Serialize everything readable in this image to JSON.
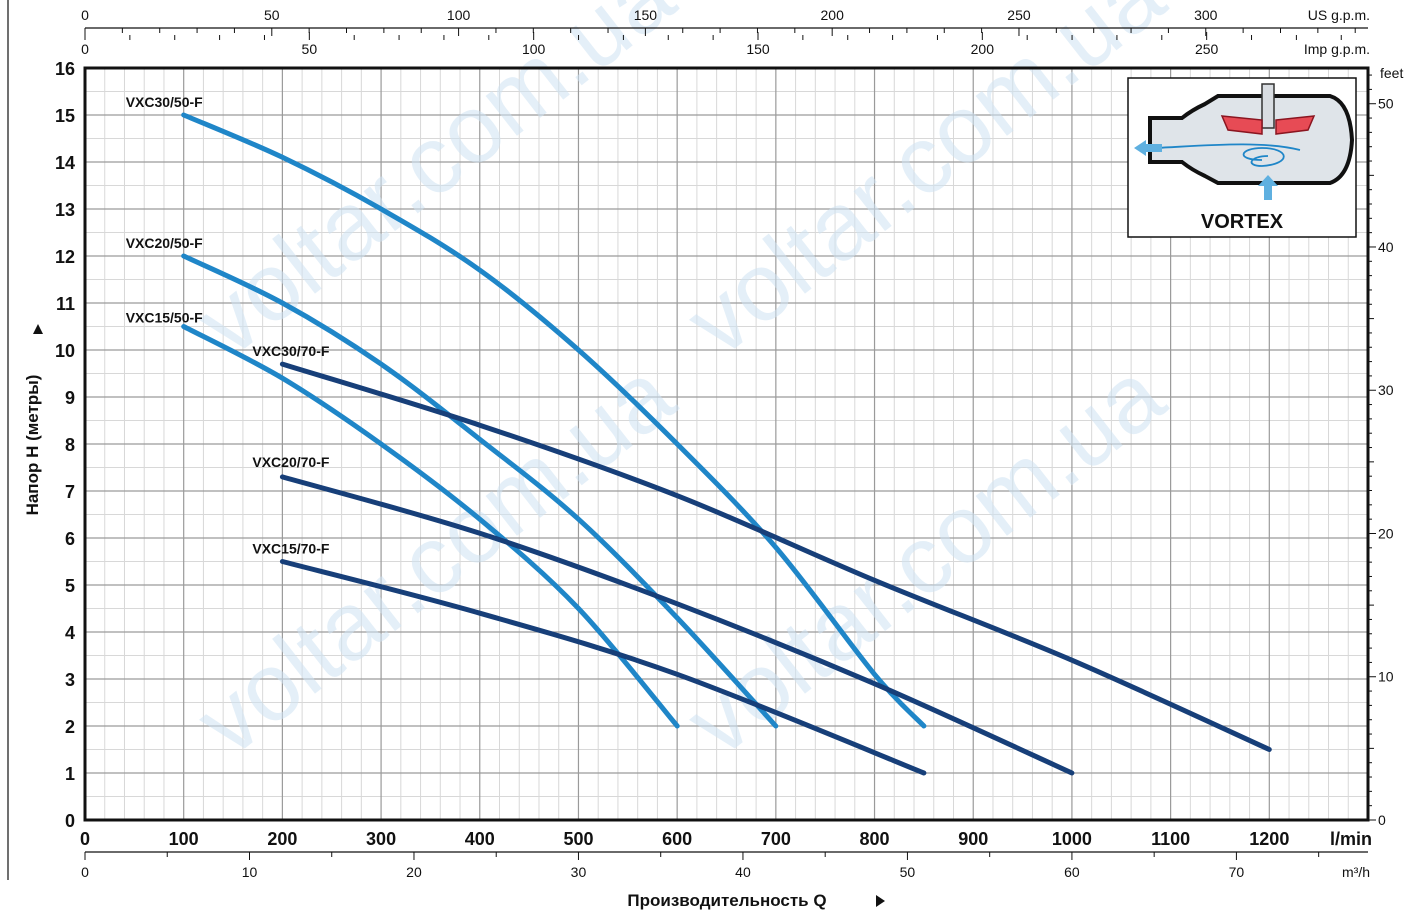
{
  "chart_data": {
    "type": "line",
    "title": "",
    "xlabel": "Производительность Q",
    "ylabel": "Напор H (метры)",
    "x_unit_label": "l/min",
    "xlim": [
      0,
      1300
    ],
    "ylim": [
      0,
      16
    ],
    "x_ticks": [
      0,
      100,
      200,
      300,
      400,
      500,
      600,
      700,
      800,
      900,
      1000,
      1100,
      1200
    ],
    "y_ticks": [
      0,
      1,
      2,
      3,
      4,
      5,
      6,
      7,
      8,
      9,
      10,
      11,
      12,
      13,
      14,
      15,
      16
    ],
    "grid": true,
    "secondary_axes": {
      "top_us": {
        "label": "US g.p.m.",
        "ticks": [
          0,
          50,
          100,
          150,
          200,
          250,
          300
        ]
      },
      "top_imp": {
        "label": "Imp g.p.m.",
        "ticks": [
          0,
          50,
          100,
          150,
          200,
          250
        ]
      },
      "bottom_m3h": {
        "label": "m³/h",
        "ticks": [
          0,
          10,
          20,
          30,
          40,
          50,
          60,
          70
        ]
      },
      "right_feet": {
        "label": "feet",
        "ticks": [
          0,
          10,
          20,
          30,
          40,
          50
        ]
      }
    },
    "series": [
      {
        "name": "VXC30/50-F",
        "color": "#1f86c8",
        "x": [
          100,
          200,
          300,
          400,
          500,
          600,
          700,
          800,
          850
        ],
        "y": [
          15.0,
          14.1,
          13.0,
          11.7,
          10.0,
          8.0,
          5.8,
          3.1,
          2.0
        ]
      },
      {
        "name": "VXC20/50-F",
        "color": "#1f86c8",
        "x": [
          100,
          200,
          300,
          400,
          500,
          600,
          700
        ],
        "y": [
          12.0,
          11.0,
          9.7,
          8.1,
          6.4,
          4.3,
          2.0
        ]
      },
      {
        "name": "VXC15/50-F",
        "color": "#1f86c8",
        "x": [
          100,
          200,
          300,
          400,
          500,
          600
        ],
        "y": [
          10.5,
          9.4,
          8.0,
          6.4,
          4.5,
          2.0
        ]
      },
      {
        "name": "VXC30/70-F",
        "color": "#173f79",
        "x": [
          200,
          400,
          600,
          800,
          1000,
          1200
        ],
        "y": [
          9.7,
          8.4,
          6.9,
          5.1,
          3.4,
          1.5
        ]
      },
      {
        "name": "VXC20/70-F",
        "color": "#173f79",
        "x": [
          200,
          400,
          600,
          800,
          1000
        ],
        "y": [
          7.3,
          6.1,
          4.6,
          2.9,
          1.0
        ]
      },
      {
        "name": "VXC15/70-F",
        "color": "#173f79",
        "x": [
          200,
          400,
          600,
          850
        ],
        "y": [
          5.5,
          4.4,
          3.1,
          1.0
        ]
      }
    ],
    "inset_label": "VORTEX",
    "watermark_text": [
      "voltar.com.ua",
      "voltar.com.ua",
      "voltar.com.ua",
      "voltar.com.ua"
    ]
  }
}
